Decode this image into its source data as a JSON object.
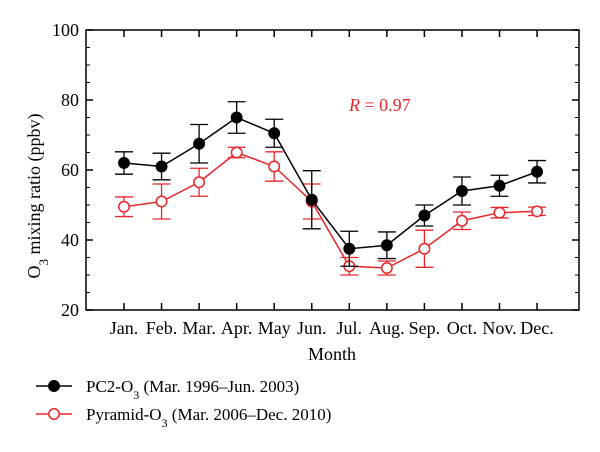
{
  "chart_data": {
    "type": "line",
    "xlabel": "Month",
    "ylabel": "O3 mixing ratio (ppbv)",
    "ylim": [
      20,
      100
    ],
    "yticks": [
      20,
      40,
      60,
      80,
      100
    ],
    "categories": [
      "Jan.",
      "Feb.",
      "Mar.",
      "Apr.",
      "May",
      "Jun.",
      "Jul.",
      "Aug.",
      "Sep.",
      "Oct.",
      "Nov.",
      "Dec."
    ],
    "series": [
      {
        "name": "PC2-O3 (Mar. 1996–Jun. 2003)",
        "color": "#000000",
        "marker": "filled-circle",
        "values": [
          62,
          61,
          67.5,
          75,
          70.5,
          51.5,
          37.5,
          38.5,
          47,
          54,
          55.5,
          59.5
        ],
        "errors": [
          3.2,
          3.8,
          5.5,
          4.5,
          4.0,
          8.3,
          5.0,
          3.8,
          3.0,
          4.0,
          3.0,
          3.2
        ]
      },
      {
        "name": "Pyramid-O3 (Mar. 2006–Dec. 2010)",
        "color": "#e8262a",
        "marker": "open-circle",
        "values": [
          49.5,
          51,
          56.5,
          65,
          61,
          51,
          32.5,
          32,
          37.5,
          45.5,
          47.8,
          48.2
        ],
        "errors": [
          2.8,
          5.0,
          4.0,
          1.5,
          4.2,
          5.0,
          2.5,
          2.0,
          5.3,
          2.5,
          1.5,
          1.2
        ]
      }
    ],
    "annotation": {
      "label": "R",
      "text": " = 0.97",
      "color": "#e8262a"
    },
    "legend": "below-left",
    "grid": false
  }
}
